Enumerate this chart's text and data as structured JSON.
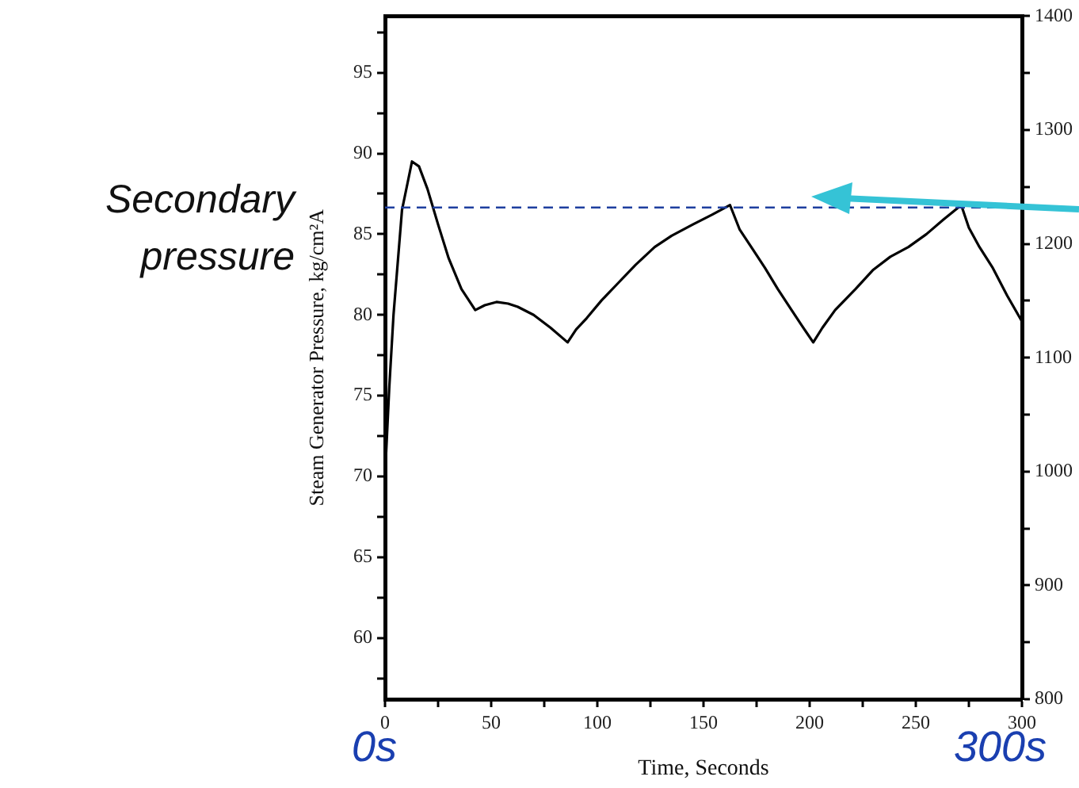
{
  "chart_data": {
    "type": "line",
    "xlabel": "Time, Seconds",
    "ylabel": "Steam Generator Pressure, kg/cm²A",
    "x": [
      0,
      2,
      4,
      8,
      12.7,
      16,
      20,
      25,
      30,
      36,
      42.5,
      47,
      52.5,
      58,
      62.5,
      70,
      78,
      86,
      90,
      95,
      102,
      110,
      118,
      127,
      135,
      145,
      154,
      162.5,
      167,
      173,
      179,
      185,
      191,
      196,
      201.7,
      206,
      212,
      221.6,
      230,
      238,
      246.5,
      255,
      263,
      271.4,
      275,
      280,
      286.3,
      293,
      300
    ],
    "series": [
      {
        "color": "#000000",
        "values": [
          70,
          75.5,
          80,
          86.5,
          89.5,
          89.2,
          87.8,
          85.6,
          83.5,
          81.6,
          80.3,
          80.6,
          80.8,
          80.7,
          80.5,
          80,
          79.2,
          78.3,
          79.1,
          79.8,
          80.9,
          82,
          83.1,
          84.2,
          84.9,
          85.6,
          86.2,
          86.8,
          85.3,
          84.1,
          82.9,
          81.6,
          80.4,
          79.4,
          78.3,
          79.2,
          80.3,
          81.6,
          82.8,
          83.6,
          84.2,
          85,
          85.9,
          86.8,
          85.4,
          84.2,
          82.9,
          81.2,
          79.6
        ]
      }
    ],
    "xlim": [
      0,
      300
    ],
    "xticks": [
      0,
      {
        "value": 25,
        "label": null
      },
      50,
      {
        "value": 75,
        "label": null
      },
      100,
      {
        "value": 125,
        "label": null
      },
      150,
      {
        "value": 175,
        "label": null
      },
      200,
      {
        "value": 225,
        "label": null
      },
      250,
      {
        "value": 275,
        "label": null
      },
      300
    ],
    "ylim": [
      56.2,
      98.5
    ],
    "yticks": [
      {
        "value": 57.5,
        "label": null
      },
      60,
      {
        "value": 62.5,
        "label": null
      },
      65,
      {
        "value": 67.5,
        "label": null
      },
      70,
      {
        "value": 72.5,
        "label": null
      },
      75,
      {
        "value": 77.5,
        "label": null
      },
      80,
      {
        "value": 82.5,
        "label": null
      },
      85,
      {
        "value": 87.5,
        "label": null
      },
      90,
      {
        "value": 92.5,
        "label": null
      },
      95,
      {
        "value": 97.5,
        "label": null
      }
    ],
    "y2lim": [
      800,
      1400
    ],
    "y2ticks": [
      800,
      {
        "value": 850,
        "label": null
      },
      900,
      {
        "value": 950,
        "label": null
      },
      1000,
      {
        "value": 1050,
        "label": null
      },
      1100,
      {
        "value": 1150,
        "label": null
      },
      1200,
      {
        "value": 1250,
        "label": null
      },
      1300,
      {
        "value": 1350,
        "label": null
      },
      1400
    ],
    "ref_lines": [
      {
        "axis": "y",
        "value": 86.65,
        "color": "#1f3f9f",
        "line_style": "dashed"
      }
    ],
    "annotations": [
      "Secondary pressure",
      "0s",
      "300s"
    ],
    "grid": false,
    "legend": false,
    "marker": "none",
    "line_style": "solid"
  }
}
